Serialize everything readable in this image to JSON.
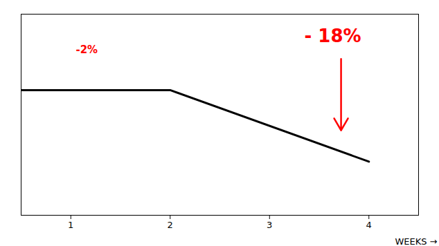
{
  "chart_data": {
    "type": "line",
    "x": [
      0.5,
      2.0,
      4.0
    ],
    "values": [
      88,
      88,
      72
    ],
    "xlim": [
      0.5,
      4.5
    ],
    "xticks": [
      1,
      2,
      3,
      4
    ],
    "ylim": [
      60,
      105
    ],
    "x_label": "WEEKS",
    "tick_labels": "x",
    "grid": false,
    "annotations": [
      {
        "text": "-2%",
        "x": 1.05,
        "y": 97,
        "color": "red"
      },
      {
        "text": "- 18%",
        "x": 3.35,
        "y": 100,
        "color": "red",
        "arrow": {
          "x": 3.72,
          "y_start": 95,
          "y_end": 79
        }
      }
    ]
  }
}
